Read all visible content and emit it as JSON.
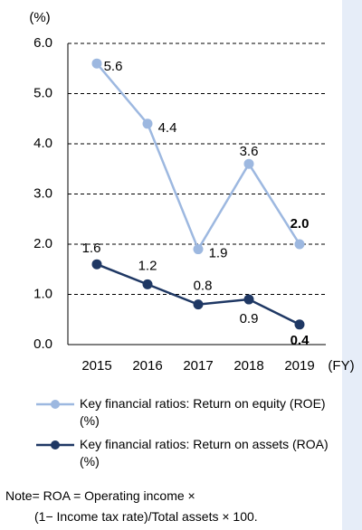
{
  "chart_data": {
    "type": "line",
    "y_label": "(%)",
    "x_label": "(FY)",
    "categories": [
      "2015",
      "2016",
      "2017",
      "2018",
      "2019"
    ],
    "series": [
      {
        "name": "Key financial ratios: Return on equity (ROE) (%)",
        "color": "#9db8e0",
        "values": [
          5.6,
          4.4,
          1.9,
          3.6,
          2.0
        ],
        "value_labels": [
          "5.6",
          "4.4",
          "1.9",
          "3.6",
          "2.0"
        ]
      },
      {
        "name": "Key financial ratios: Return on assets (ROA) (%)",
        "color": "#1f3864",
        "values": [
          1.6,
          1.2,
          0.8,
          0.9,
          0.4
        ]
      }
    ],
    "ylim": [
      0,
      6
    ],
    "yticks": [
      {
        "value": 0,
        "label": "0.0"
      },
      {
        "value": 1,
        "label": "1.0"
      },
      {
        "value": 2,
        "label": "2.0"
      },
      {
        "value": 3,
        "label": "3.0"
      },
      {
        "value": 4,
        "label": "4.0"
      },
      {
        "value": 5,
        "label": "5.0"
      },
      {
        "value": 6,
        "label": "6.0"
      }
    ],
    "grid": true,
    "notes": [
      "Note= ROA = Operating income ×",
      "(1− Income tax rate)/Total assets × 100."
    ]
  }
}
